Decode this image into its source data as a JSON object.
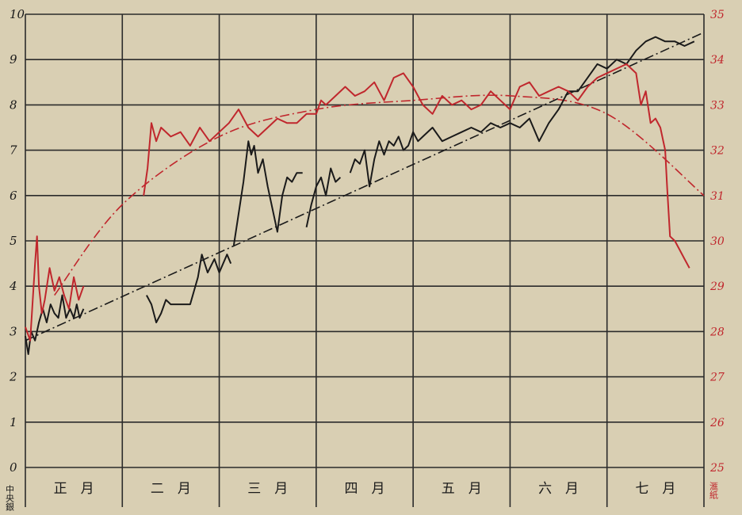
{
  "chart_data": {
    "type": "line",
    "title": "",
    "categories": [
      "正　月",
      "二　月",
      "三　月",
      "四　月",
      "五　月",
      "六　月",
      "七　月"
    ],
    "left_axis": {
      "label": "中央銀",
      "ticks": [
        "0",
        "1",
        "2",
        "3",
        "4",
        "5",
        "6",
        "7",
        "8",
        "9",
        "10"
      ],
      "ylim": [
        0,
        10
      ],
      "color": "#1a1a1a"
    },
    "right_axis": {
      "label": "滙紙",
      "ticks": [
        "25",
        "26",
        "27",
        "28",
        "29",
        "30",
        "31",
        "32",
        "33",
        "34",
        "35"
      ],
      "ylim": [
        25,
        35
      ],
      "color": "#c0272d"
    },
    "grid": true,
    "x_range": [
      0,
      7
    ],
    "series": [
      {
        "axis": "left",
        "color": "#1a1a1a",
        "segments": [
          [
            [
              0.0,
              2.9
            ],
            [
              0.03,
              2.5
            ],
            [
              0.06,
              3.0
            ],
            [
              0.1,
              2.8
            ],
            [
              0.14,
              3.2
            ],
            [
              0.18,
              3.5
            ],
            [
              0.22,
              3.2
            ],
            [
              0.26,
              3.6
            ],
            [
              0.3,
              3.4
            ],
            [
              0.34,
              3.3
            ],
            [
              0.38,
              3.8
            ],
            [
              0.42,
              3.3
            ],
            [
              0.46,
              3.5
            ],
            [
              0.5,
              3.3
            ],
            [
              0.53,
              3.6
            ],
            [
              0.56,
              3.3
            ],
            [
              0.6,
              3.5
            ]
          ],
          [
            [
              1.25,
              3.8
            ],
            [
              1.3,
              3.6
            ],
            [
              1.35,
              3.2
            ],
            [
              1.4,
              3.4
            ],
            [
              1.45,
              3.7
            ],
            [
              1.5,
              3.6
            ],
            [
              1.6,
              3.6
            ],
            [
              1.7,
              3.6
            ],
            [
              1.78,
              4.2
            ],
            [
              1.82,
              4.7
            ],
            [
              1.88,
              4.3
            ],
            [
              1.95,
              4.6
            ],
            [
              2.0,
              4.3
            ],
            [
              2.08,
              4.7
            ],
            [
              2.12,
              4.5
            ]
          ],
          [
            [
              2.15,
              4.9
            ],
            [
              2.2,
              5.6
            ],
            [
              2.25,
              6.3
            ],
            [
              2.3,
              7.2
            ],
            [
              2.33,
              6.9
            ],
            [
              2.36,
              7.1
            ],
            [
              2.4,
              6.5
            ],
            [
              2.45,
              6.8
            ],
            [
              2.5,
              6.2
            ],
            [
              2.55,
              5.7
            ],
            [
              2.6,
              5.2
            ],
            [
              2.65,
              6.0
            ],
            [
              2.7,
              6.4
            ],
            [
              2.75,
              6.3
            ],
            [
              2.8,
              6.5
            ],
            [
              2.86,
              6.5
            ]
          ],
          [
            [
              2.9,
              5.3
            ],
            [
              2.95,
              5.8
            ],
            [
              3.0,
              6.2
            ],
            [
              3.05,
              6.4
            ],
            [
              3.1,
              6.0
            ],
            [
              3.15,
              6.6
            ],
            [
              3.2,
              6.3
            ],
            [
              3.25,
              6.4
            ]
          ],
          [
            [
              3.35,
              6.5
            ],
            [
              3.4,
              6.8
            ],
            [
              3.45,
              6.7
            ],
            [
              3.5,
              7.0
            ],
            [
              3.55,
              6.2
            ],
            [
              3.6,
              6.8
            ],
            [
              3.65,
              7.2
            ],
            [
              3.7,
              6.9
            ],
            [
              3.75,
              7.2
            ],
            [
              3.8,
              7.1
            ],
            [
              3.85,
              7.3
            ],
            [
              3.9,
              7.0
            ],
            [
              3.95,
              7.1
            ],
            [
              4.0,
              7.4
            ],
            [
              4.05,
              7.2
            ],
            [
              4.1,
              7.3
            ],
            [
              4.2,
              7.5
            ],
            [
              4.3,
              7.2
            ],
            [
              4.4,
              7.3
            ],
            [
              4.5,
              7.4
            ],
            [
              4.6,
              7.5
            ],
            [
              4.7,
              7.4
            ],
            [
              4.8,
              7.6
            ],
            [
              4.9,
              7.5
            ],
            [
              5.0,
              7.6
            ],
            [
              5.1,
              7.5
            ],
            [
              5.2,
              7.7
            ],
            [
              5.3,
              7.2
            ],
            [
              5.4,
              7.6
            ],
            [
              5.5,
              7.9
            ],
            [
              5.6,
              8.3
            ],
            [
              5.7,
              8.3
            ],
            [
              5.8,
              8.6
            ],
            [
              5.9,
              8.9
            ],
            [
              6.0,
              8.8
            ],
            [
              6.1,
              9.0
            ],
            [
              6.2,
              8.9
            ],
            [
              6.3,
              9.2
            ],
            [
              6.4,
              9.4
            ],
            [
              6.5,
              9.5
            ],
            [
              6.6,
              9.4
            ],
            [
              6.7,
              9.4
            ],
            [
              6.8,
              9.3
            ],
            [
              6.9,
              9.4
            ]
          ]
        ]
      },
      {
        "axis": "right",
        "color": "#c0272d",
        "segments": [
          [
            [
              0.0,
              28.1
            ],
            [
              0.05,
              27.8
            ],
            [
              0.1,
              29.5
            ],
            [
              0.12,
              30.1
            ],
            [
              0.14,
              29.0
            ],
            [
              0.17,
              28.4
            ],
            [
              0.2,
              28.7
            ],
            [
              0.25,
              29.4
            ],
            [
              0.3,
              28.9
            ],
            [
              0.35,
              29.2
            ],
            [
              0.4,
              28.8
            ],
            [
              0.45,
              28.5
            ],
            [
              0.5,
              29.2
            ],
            [
              0.55,
              28.7
            ],
            [
              0.6,
              29.0
            ]
          ],
          [
            [
              1.22,
              31.0
            ],
            [
              1.26,
              31.6
            ],
            [
              1.3,
              32.6
            ],
            [
              1.35,
              32.2
            ],
            [
              1.4,
              32.5
            ],
            [
              1.5,
              32.3
            ],
            [
              1.6,
              32.4
            ],
            [
              1.7,
              32.1
            ],
            [
              1.8,
              32.5
            ],
            [
              1.9,
              32.2
            ],
            [
              2.0,
              32.4
            ],
            [
              2.1,
              32.6
            ],
            [
              2.2,
              32.9
            ],
            [
              2.3,
              32.5
            ],
            [
              2.4,
              32.3
            ],
            [
              2.5,
              32.5
            ],
            [
              2.6,
              32.7
            ],
            [
              2.7,
              32.6
            ],
            [
              2.8,
              32.6
            ],
            [
              2.9,
              32.8
            ],
            [
              3.0,
              32.8
            ],
            [
              3.05,
              33.1
            ],
            [
              3.1,
              33.0
            ],
            [
              3.2,
              33.2
            ],
            [
              3.3,
              33.4
            ],
            [
              3.4,
              33.2
            ],
            [
              3.5,
              33.3
            ],
            [
              3.6,
              33.5
            ],
            [
              3.7,
              33.1
            ],
            [
              3.8,
              33.6
            ],
            [
              3.9,
              33.7
            ],
            [
              4.0,
              33.4
            ],
            [
              4.1,
              33.0
            ],
            [
              4.2,
              32.8
            ],
            [
              4.3,
              33.2
            ],
            [
              4.4,
              33.0
            ],
            [
              4.5,
              33.1
            ],
            [
              4.6,
              32.9
            ],
            [
              4.7,
              33.0
            ],
            [
              4.8,
              33.3
            ],
            [
              4.9,
              33.1
            ],
            [
              5.0,
              32.9
            ],
            [
              5.1,
              33.4
            ],
            [
              5.2,
              33.5
            ],
            [
              5.3,
              33.2
            ],
            [
              5.4,
              33.3
            ],
            [
              5.5,
              33.4
            ],
            [
              5.6,
              33.3
            ],
            [
              5.7,
              33.1
            ],
            [
              5.8,
              33.4
            ],
            [
              5.9,
              33.6
            ],
            [
              6.0,
              33.7
            ],
            [
              6.1,
              33.8
            ],
            [
              6.2,
              33.9
            ],
            [
              6.3,
              33.7
            ],
            [
              6.35,
              33.0
            ],
            [
              6.4,
              33.3
            ],
            [
              6.45,
              32.6
            ],
            [
              6.5,
              32.7
            ],
            [
              6.55,
              32.5
            ],
            [
              6.6,
              32.0
            ],
            [
              6.62,
              31.2
            ],
            [
              6.65,
              30.1
            ],
            [
              6.7,
              30.0
            ],
            [
              6.75,
              29.8
            ],
            [
              6.8,
              29.6
            ],
            [
              6.85,
              29.4
            ]
          ]
        ]
      }
    ],
    "trend_lines": [
      {
        "axis": "left",
        "color": "#1a1a1a",
        "style": "dash-dot",
        "shape": "straight",
        "points": [
          [
            0.0,
            2.8
          ],
          [
            7.0,
            9.6
          ]
        ]
      },
      {
        "axis": "right",
        "color": "#c0272d",
        "style": "dash-dot",
        "shape": "curve",
        "points": [
          [
            0.3,
            28.8
          ],
          [
            1.0,
            30.8
          ],
          [
            2.0,
            32.3
          ],
          [
            3.0,
            32.9
          ],
          [
            4.0,
            33.1
          ],
          [
            5.0,
            33.2
          ],
          [
            6.0,
            32.8
          ],
          [
            7.0,
            31.0
          ]
        ]
      }
    ]
  }
}
